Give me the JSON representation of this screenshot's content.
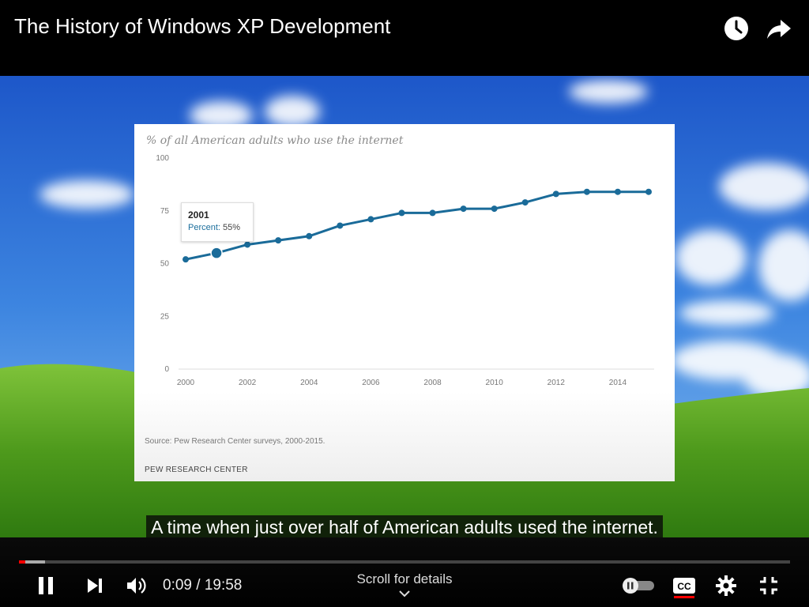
{
  "header": {
    "title": "The History of Windows XP Development",
    "icons": [
      "watch-later-icon",
      "share-icon"
    ]
  },
  "chart_data": {
    "type": "line",
    "title": "% of all American adults who use the internet",
    "x": [
      2000,
      2001,
      2002,
      2003,
      2004,
      2005,
      2006,
      2007,
      2008,
      2009,
      2010,
      2011,
      2012,
      2013,
      2014,
      2015
    ],
    "series": [
      {
        "values": [
          52,
          55,
          59,
          61,
          63,
          68,
          71,
          74,
          74,
          76,
          76,
          79,
          83,
          84,
          84,
          84
        ]
      }
    ],
    "xticks": [
      "2000",
      "2002",
      "2004",
      "2006",
      "2008",
      "2010",
      "2012",
      "2014"
    ],
    "yticks": [
      "0",
      "25",
      "50",
      "75",
      "100"
    ],
    "ylim": [
      0,
      100
    ],
    "xlim": [
      2000,
      2015
    ],
    "grid": false,
    "color": "#1a6b99",
    "highlight": {
      "year": "2001",
      "label": "Percent:",
      "value": "55%",
      "x": 2001,
      "y": 55
    },
    "source": "Source: Pew Research Center surveys, 2000-2015.",
    "brand": "PEW RESEARCH CENTER"
  },
  "caption": "A time when just over half of American adults used the internet.",
  "player": {
    "time": "0:09 / 19:58",
    "scroll_hint": "Scroll for details",
    "played_fraction": 0.008,
    "buffered_fraction": 0.034,
    "icons": [
      "pause-icon",
      "next-icon",
      "volume-icon",
      "autoplay-toggle-icon",
      "subtitles-icon",
      "settings-icon",
      "exit-fullscreen-icon"
    ],
    "accent": "#ff0000"
  }
}
